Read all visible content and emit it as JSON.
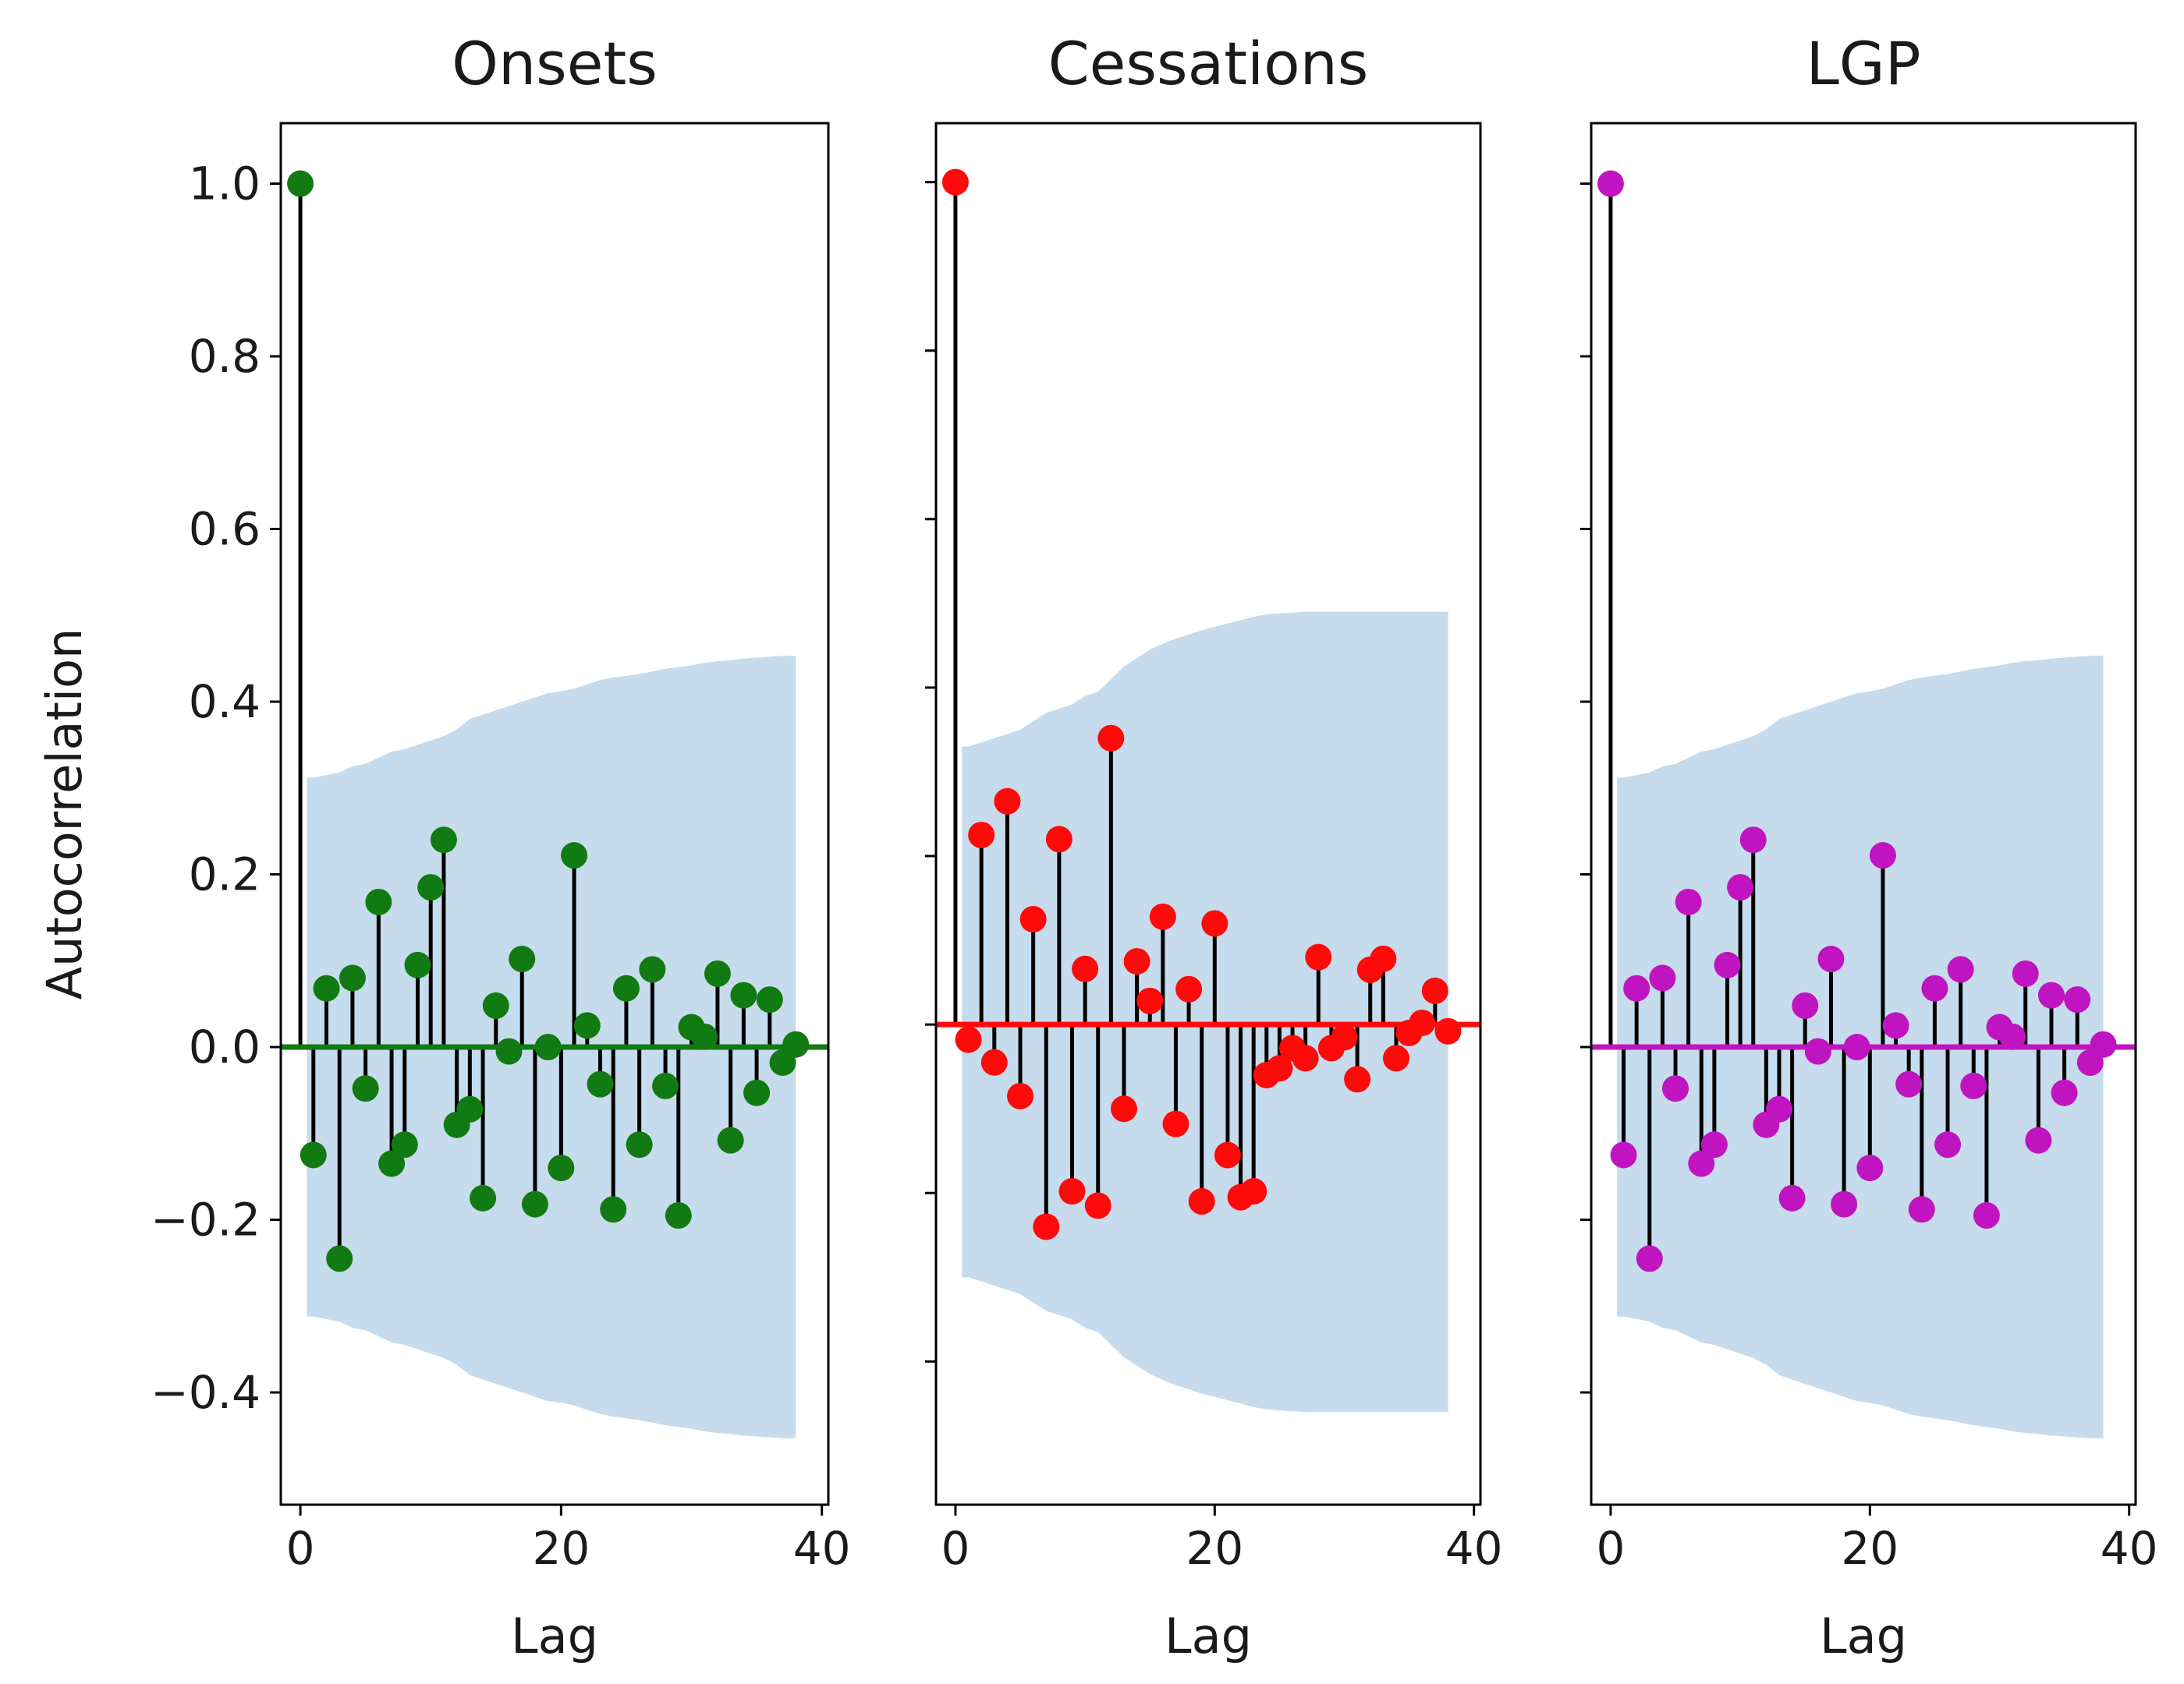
{
  "colors": {
    "background": "#ffffff",
    "confidence_band": "#c6dbec",
    "stem": "#000000",
    "frame": "#000000"
  },
  "chart_data": [
    {
      "type": "stem",
      "title": "Onsets",
      "xlabel": "Lag",
      "ylabel": "Autocorrelation",
      "xlim": [
        -1.5,
        40.5
      ],
      "ylim": [
        -0.53,
        1.07
      ],
      "xticks": [
        "0",
        "20",
        "40"
      ],
      "yticks": [
        "1.0",
        "0.8",
        "0.6",
        "0.4",
        "0.2",
        "0.0",
        "−0.2",
        "−0.4"
      ],
      "show_ytick_labels": true,
      "color": "#127a12",
      "baseline": 0.0,
      "lags": [
        0,
        1,
        2,
        3,
        4,
        5,
        6,
        7,
        8,
        9,
        10,
        11,
        12,
        13,
        14,
        15,
        16,
        17,
        18,
        19,
        20,
        21,
        22,
        23,
        24,
        25,
        26,
        27,
        28,
        29,
        30,
        31,
        32,
        33,
        34,
        35,
        36,
        37,
        38
      ],
      "values": [
        1.0,
        -0.125,
        0.068,
        -0.245,
        0.08,
        -0.048,
        0.168,
        -0.135,
        -0.113,
        0.095,
        0.185,
        0.24,
        -0.09,
        -0.072,
        -0.175,
        0.048,
        -0.005,
        0.102,
        -0.182,
        0.0,
        -0.14,
        0.222,
        0.025,
        -0.043,
        -0.188,
        0.068,
        -0.113,
        0.09,
        -0.045,
        -0.195,
        0.023,
        0.012,
        0.085,
        -0.108,
        0.06,
        -0.053,
        0.055,
        -0.018,
        0.003
      ],
      "conf_upper": [
        0.0,
        0.312,
        0.315,
        0.318,
        0.325,
        0.328,
        0.335,
        0.342,
        0.345,
        0.35,
        0.355,
        0.36,
        0.368,
        0.38,
        0.385,
        0.39,
        0.395,
        0.4,
        0.405,
        0.41,
        0.412,
        0.415,
        0.42,
        0.425,
        0.428,
        0.43,
        0.432,
        0.435,
        0.438,
        0.44,
        0.442,
        0.445,
        0.447,
        0.448,
        0.45,
        0.451,
        0.452,
        0.453,
        0.453
      ],
      "conf_lower": [
        0.0,
        -0.312,
        -0.315,
        -0.318,
        -0.325,
        -0.328,
        -0.335,
        -0.342,
        -0.345,
        -0.35,
        -0.355,
        -0.36,
        -0.368,
        -0.38,
        -0.385,
        -0.39,
        -0.395,
        -0.4,
        -0.405,
        -0.41,
        -0.412,
        -0.415,
        -0.42,
        -0.425,
        -0.428,
        -0.43,
        -0.432,
        -0.435,
        -0.438,
        -0.44,
        -0.442,
        -0.445,
        -0.447,
        -0.448,
        -0.45,
        -0.451,
        -0.452,
        -0.453,
        -0.453
      ]
    },
    {
      "type": "stem",
      "title": "Cessations",
      "xlabel": "Lag",
      "ylabel": "",
      "xlim": [
        -1.5,
        40.5
      ],
      "ylim": [
        -0.57,
        1.07
      ],
      "xticks": [
        "0",
        "20",
        "40"
      ],
      "yticks": [
        "1.0",
        "0.8",
        "0.6",
        "0.4",
        "0.2",
        "0.0",
        "−0.2",
        "−0.4"
      ],
      "show_ytick_labels": false,
      "color": "#ff0a0a",
      "baseline": 0.0,
      "lags": [
        0,
        1,
        2,
        3,
        4,
        5,
        6,
        7,
        8,
        9,
        10,
        11,
        12,
        13,
        14,
        15,
        16,
        17,
        18,
        19,
        20,
        21,
        22,
        23,
        24,
        25,
        26,
        27,
        28,
        29,
        30,
        31,
        32,
        33,
        34,
        35,
        36,
        37,
        38
      ],
      "values": [
        1.0,
        -0.018,
        0.225,
        -0.045,
        0.265,
        -0.085,
        0.125,
        -0.24,
        0.22,
        -0.198,
        0.066,
        -0.215,
        0.34,
        -0.1,
        0.075,
        0.028,
        0.128,
        -0.118,
        0.042,
        -0.21,
        0.12,
        -0.155,
        -0.205,
        -0.198,
        -0.06,
        -0.052,
        -0.028,
        -0.04,
        0.08,
        -0.028,
        -0.015,
        -0.065,
        0.065,
        0.078,
        -0.04,
        -0.01,
        0.002,
        0.04,
        -0.008
      ],
      "conf_upper": [
        0.0,
        0.33,
        0.335,
        0.34,
        0.345,
        0.35,
        0.36,
        0.37,
        0.375,
        0.38,
        0.39,
        0.395,
        0.41,
        0.425,
        0.435,
        0.445,
        0.452,
        0.458,
        0.463,
        0.468,
        0.472,
        0.476,
        0.48,
        0.484,
        0.487,
        0.488,
        0.489,
        0.49,
        0.49,
        0.49,
        0.49,
        0.49,
        0.49,
        0.49,
        0.49,
        0.49,
        0.49,
        0.49,
        0.49
      ],
      "conf_lower": [
        0.0,
        -0.3,
        -0.305,
        -0.31,
        -0.315,
        -0.32,
        -0.33,
        -0.34,
        -0.345,
        -0.35,
        -0.36,
        -0.365,
        -0.38,
        -0.395,
        -0.405,
        -0.415,
        -0.422,
        -0.428,
        -0.433,
        -0.438,
        -0.442,
        -0.446,
        -0.45,
        -0.454,
        -0.457,
        -0.458,
        -0.459,
        -0.46,
        -0.46,
        -0.46,
        -0.46,
        -0.46,
        -0.46,
        -0.46,
        -0.46,
        -0.46,
        -0.46,
        -0.46,
        -0.46
      ]
    },
    {
      "type": "stem",
      "title": "LGP",
      "xlabel": "Lag",
      "ylabel": "",
      "xlim": [
        -1.5,
        40.5
      ],
      "ylim": [
        -0.53,
        1.07
      ],
      "xticks": [
        "0",
        "20",
        "40"
      ],
      "yticks": [
        "1.0",
        "0.8",
        "0.6",
        "0.4",
        "0.2",
        "0.0",
        "−0.2",
        "−0.4"
      ],
      "show_ytick_labels": false,
      "color": "#c014c0",
      "baseline": 0.0,
      "lags": [
        0,
        1,
        2,
        3,
        4,
        5,
        6,
        7,
        8,
        9,
        10,
        11,
        12,
        13,
        14,
        15,
        16,
        17,
        18,
        19,
        20,
        21,
        22,
        23,
        24,
        25,
        26,
        27,
        28,
        29,
        30,
        31,
        32,
        33,
        34,
        35,
        36,
        37,
        38
      ],
      "values": [
        1.0,
        -0.125,
        0.068,
        -0.245,
        0.08,
        -0.048,
        0.168,
        -0.135,
        -0.113,
        0.095,
        0.185,
        0.24,
        -0.09,
        -0.072,
        -0.175,
        0.048,
        -0.005,
        0.102,
        -0.182,
        0.0,
        -0.14,
        0.222,
        0.025,
        -0.043,
        -0.188,
        0.068,
        -0.113,
        0.09,
        -0.045,
        -0.195,
        0.023,
        0.012,
        0.085,
        -0.108,
        0.06,
        -0.053,
        0.055,
        -0.018,
        0.003
      ],
      "conf_upper": [
        0.0,
        0.312,
        0.315,
        0.318,
        0.325,
        0.328,
        0.335,
        0.342,
        0.345,
        0.35,
        0.355,
        0.36,
        0.368,
        0.38,
        0.385,
        0.39,
        0.395,
        0.4,
        0.405,
        0.41,
        0.412,
        0.415,
        0.42,
        0.425,
        0.428,
        0.43,
        0.432,
        0.435,
        0.438,
        0.44,
        0.442,
        0.445,
        0.447,
        0.448,
        0.45,
        0.451,
        0.452,
        0.453,
        0.453
      ],
      "conf_lower": [
        0.0,
        -0.312,
        -0.315,
        -0.318,
        -0.325,
        -0.328,
        -0.335,
        -0.342,
        -0.345,
        -0.35,
        -0.355,
        -0.36,
        -0.368,
        -0.38,
        -0.385,
        -0.39,
        -0.395,
        -0.4,
        -0.405,
        -0.41,
        -0.412,
        -0.415,
        -0.42,
        -0.425,
        -0.428,
        -0.43,
        -0.432,
        -0.435,
        -0.438,
        -0.44,
        -0.442,
        -0.445,
        -0.447,
        -0.448,
        -0.45,
        -0.451,
        -0.452,
        -0.453,
        -0.453
      ]
    }
  ]
}
